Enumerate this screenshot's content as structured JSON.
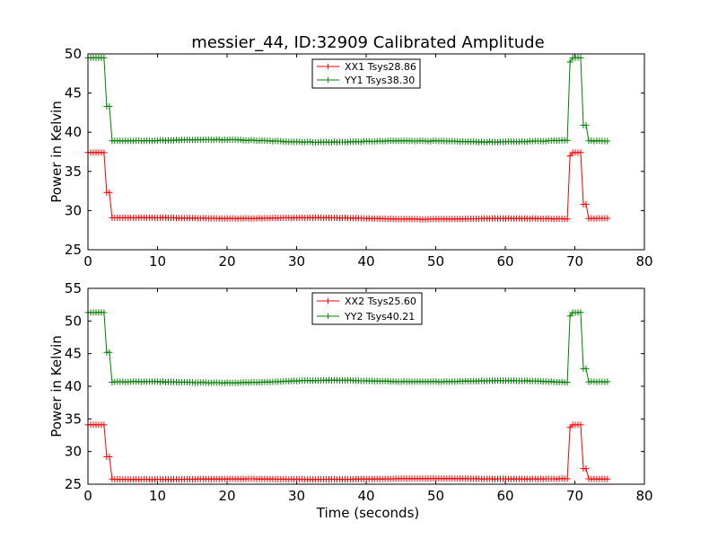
{
  "chart_data": {
    "title": "messier_44, ID:32909 Calibrated Amplitude",
    "xlabel": "Time (seconds)",
    "panels": [
      {
        "type": "line",
        "ylabel": "Power in Kelvin",
        "xlim": [
          0,
          80
        ],
        "ylim": [
          25,
          50
        ],
        "xticks": [
          0,
          10,
          20,
          30,
          40,
          50,
          60,
          70,
          80
        ],
        "yticks": [
          25,
          30,
          35,
          40,
          45,
          50
        ],
        "legend_position": "top-center",
        "grid": false,
        "series": [
          {
            "name": "XX1 Tsys28.86",
            "color": "#ff0000",
            "marker": "+",
            "high": 37.4,
            "low": 29.0,
            "start_mid": 32.3,
            "end_mid": 30.8,
            "high_noise": 0.02,
            "low_noise": 0.05,
            "low_wobble": 0.12
          },
          {
            "name": "YY1 Tsys38.30",
            "color": "#008000",
            "marker": "+",
            "high": 49.5,
            "low": 38.9,
            "start_mid": 43.3,
            "end_mid": 40.9,
            "high_noise": 0.02,
            "low_noise": 0.08,
            "low_wobble": 0.2
          }
        ]
      },
      {
        "type": "line",
        "ylabel": "Power in Kelvin",
        "xlim": [
          0,
          80
        ],
        "ylim": [
          25,
          55
        ],
        "xticks": [
          0,
          10,
          20,
          30,
          40,
          50,
          60,
          70,
          80
        ],
        "yticks": [
          25,
          30,
          35,
          40,
          45,
          50,
          55
        ],
        "legend_position": "top-center",
        "grid": false,
        "series": [
          {
            "name": "XX2 Tsys25.60",
            "color": "#ff0000",
            "marker": "+",
            "high": 34.1,
            "low": 25.8,
            "start_mid": 29.2,
            "end_mid": 27.4,
            "high_noise": 0.02,
            "low_noise": 0.05,
            "low_wobble": 0.08
          },
          {
            "name": "YY2 Tsys40.21",
            "color": "#008000",
            "marker": "+",
            "high": 51.3,
            "low": 40.7,
            "start_mid": 45.2,
            "end_mid": 42.7,
            "high_noise": 0.02,
            "low_noise": 0.08,
            "low_wobble": 0.25
          }
        ]
      }
    ],
    "time_series": {
      "x_start": 0.0,
      "x_end": 75.0,
      "cal_on_1": [
        0.0,
        2.4
      ],
      "cal_off": [
        3.1,
        69.1
      ],
      "cal_on_2": [
        69.5,
        71.2
      ]
    }
  }
}
